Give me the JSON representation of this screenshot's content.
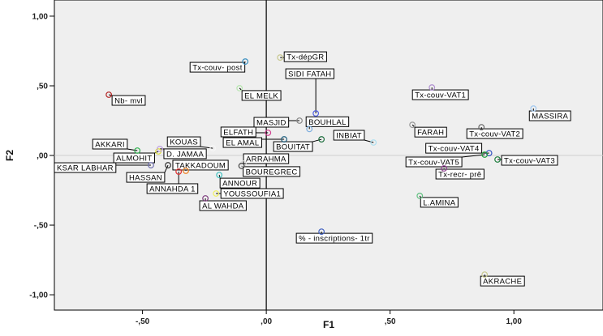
{
  "chart_data": {
    "type": "scatter",
    "title": "",
    "xlabel": "F1",
    "ylabel": "F2",
    "xlim": [
      -0.856,
      1.36
    ],
    "ylim": [
      -1.11,
      1.116
    ],
    "grid": false,
    "reference_lines": {
      "x": 0,
      "y": 0
    },
    "xticks": [
      {
        "v": -0.5,
        "label": "-,50"
      },
      {
        "v": 0,
        "label": ",00"
      },
      {
        "v": 0.5,
        "label": ",50"
      },
      {
        "v": 1,
        "label": "1,00"
      }
    ],
    "yticks": [
      {
        "v": 1,
        "label": "1,00"
      },
      {
        "v": 0.5,
        "label": ",50"
      },
      {
        "v": 0,
        "label": ",00"
      },
      {
        "v": -0.5,
        "label": "-,50"
      },
      {
        "v": -1,
        "label": "-1,00"
      }
    ],
    "points": [
      {
        "name": "Nb- mvl",
        "x": -0.636,
        "y": 0.436,
        "color": "#b22222"
      },
      {
        "name": "Tx-couv- post",
        "x": -0.085,
        "y": 0.674,
        "color": "#3a8fc0"
      },
      {
        "name": "EL MELK",
        "x": -0.108,
        "y": 0.483,
        "color": "#b8e6b0"
      },
      {
        "name": "Tx-dépGR",
        "x": 0.056,
        "y": 0.703,
        "color": "#c8c890"
      },
      {
        "name": "SIDI FATAH",
        "x": 0.2,
        "y": 0.302,
        "color": "#5060e0"
      },
      {
        "name": "MASJID",
        "x": 0.134,
        "y": 0.25,
        "color": "#888888"
      },
      {
        "name": "ELFATH",
        "x": 0.007,
        "y": 0.163,
        "color": "#d04090"
      },
      {
        "name": "BOUHLAL",
        "x": 0.174,
        "y": 0.19,
        "color": "#80b0e0"
      },
      {
        "name": "EL AMAL",
        "x": 0.072,
        "y": 0.116,
        "color": "#206080"
      },
      {
        "name": "BOUITAT",
        "x": 0.223,
        "y": 0.116,
        "color": "#207040"
      },
      {
        "name": "INBIAT",
        "x": 0.433,
        "y": 0.093,
        "color": "#b0e0f0"
      },
      {
        "name": "FARAH",
        "x": 0.59,
        "y": 0.22,
        "color": "#999999"
      },
      {
        "name": "Tx-couv-VAT1",
        "x": 0.669,
        "y": 0.488,
        "color": "#b090d0"
      },
      {
        "name": "MASSIRA",
        "x": 1.079,
        "y": 0.337,
        "color": "#a0c8f0"
      },
      {
        "name": "Tx-couv-VAT2",
        "x": 0.869,
        "y": 0.203,
        "color": "#666666"
      },
      {
        "name": "Tx-couv-VAT4",
        "x": 0.9,
        "y": 0.017,
        "color": "#3050c0"
      },
      {
        "name": "Tx-couv-VAT5",
        "x": 0.882,
        "y": 0.006,
        "color": "#20a040"
      },
      {
        "name": "Tx-couv-VAT3",
        "x": 0.934,
        "y": -0.029,
        "color": "#208040"
      },
      {
        "name": "Tx-recr- prê",
        "x": 0.718,
        "y": -0.093,
        "color": "#904090"
      },
      {
        "name": "L.AMINA",
        "x": 0.62,
        "y": -0.29,
        "color": "#60c080"
      },
      {
        "name": "% - inscriptions- 1tr",
        "x": 0.223,
        "y": -0.547,
        "color": "#4060c0"
      },
      {
        "name": "AKRACHE",
        "x": 0.882,
        "y": -0.855,
        "color": "#c8c890"
      },
      {
        "name": "AKKARI",
        "x": -0.521,
        "y": 0.035,
        "color": "#30b050"
      },
      {
        "name": "ALMOHIT",
        "x": -0.436,
        "y": 0.029,
        "color": "#e0e040"
      },
      {
        "name": "D. JAMAA",
        "x": -0.43,
        "y": 0.047,
        "color": "#c0a0e0"
      },
      {
        "name": "KOUAS",
        "x": -0.216,
        "y": 0.052,
        "color": "#ffffff"
      },
      {
        "name": "KSAR LABHAR",
        "x": -0.466,
        "y": -0.07,
        "color": "#7070b0"
      },
      {
        "name": "HASSAN",
        "x": -0.397,
        "y": -0.07,
        "color": "#333333"
      },
      {
        "name": "TAKKADOUM",
        "x": -0.325,
        "y": -0.11,
        "color": "#f08020"
      },
      {
        "name": "ANNAHDA 1",
        "x": -0.354,
        "y": -0.116,
        "color": "#e03030"
      },
      {
        "name": "ARRAHMA",
        "x": -0.092,
        "y": -0.058,
        "color": "#dddddd"
      },
      {
        "name": "BOUREGREC",
        "x": -0.1,
        "y": -0.075,
        "color": "#444444"
      },
      {
        "name": "ANNOUR",
        "x": -0.19,
        "y": -0.14,
        "color": "#40c0c0"
      },
      {
        "name": "YOUSSOUFIA1",
        "x": -0.203,
        "y": -0.273,
        "color": "#f0f060"
      },
      {
        "name": "AL WAHDA",
        "x": -0.246,
        "y": -0.308,
        "color": "#804080"
      }
    ]
  }
}
